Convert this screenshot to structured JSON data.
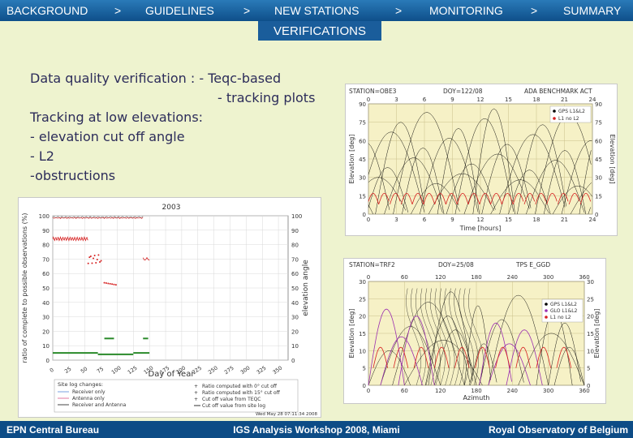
{
  "nav": {
    "items": [
      "BACKGROUND",
      "GUIDELINES",
      "NEW STATIONS",
      "MONITORING",
      "SUMMARY"
    ],
    "separator": ">",
    "active_sub": "VERIFICATIONS"
  },
  "content": {
    "line1": "Data quality verification :  -  Teqc-based",
    "line2": "-  tracking plots",
    "line3": "Tracking at low elevations:",
    "line4": "- elevation cut off angle",
    "line5": "- L2",
    "line6": "-obstructions"
  },
  "plot_left": {
    "title": "2003",
    "ylabel_left": "ratio of complete to possible observations (%)",
    "ylabel_right": "elevation angle",
    "xlabel": "Day of Year",
    "y_ticks": [
      "0",
      "10",
      "20",
      "30",
      "40",
      "50",
      "60",
      "70",
      "80",
      "90",
      "100"
    ],
    "x_ticks": [
      "0",
      "25",
      "50",
      "75",
      "100",
      "125",
      "150",
      "175",
      "200",
      "225",
      "250",
      "275",
      "300",
      "325",
      "350"
    ],
    "legend_title": "Site log changes:",
    "legend_left": [
      "Receiver only",
      "Antenna only",
      "Receiver and Antenna"
    ],
    "legend_right": [
      "Ratio computed with 0° cut off",
      "Ratio computed with 15° cut off",
      "Cut off value from TEQC",
      "Cut off value from site log"
    ],
    "timestamp": "Wed May 28 07:11:34 2008"
  },
  "plot_top_right": {
    "header": [
      "STATION=OBE3",
      "DOY=122/08",
      "ADA BENCHMARK ACT"
    ],
    "legend": [
      "GPS L1&L2",
      "L1 no L2"
    ],
    "ylabel_left": "Elevation [deg]",
    "ylabel_right": "Elevation [deg]",
    "xlabel": "Time [hours]",
    "x_ticks": [
      "0",
      "3",
      "6",
      "9",
      "12",
      "15",
      "18",
      "21",
      "24"
    ],
    "y_ticks": [
      "0",
      "15",
      "30",
      "45",
      "60",
      "75",
      "90"
    ]
  },
  "plot_bottom_right": {
    "header": [
      "STATION=TRF2",
      "DOY=25/08",
      "TPS E_GGD"
    ],
    "legend": [
      "GPS L1&L2",
      "GLO L1&L2",
      "L1 no L2"
    ],
    "ylabel_left": "Elevation [deg]",
    "ylabel_right": "Elevation [deg]",
    "xlabel": "Azimuth",
    "x_ticks": [
      "0",
      "60",
      "120",
      "180",
      "240",
      "300",
      "360"
    ],
    "y_ticks": [
      "0",
      "5",
      "10",
      "15",
      "20",
      "25",
      "30"
    ]
  },
  "footer": {
    "left": "EPN Central Bureau",
    "center": "IGS Analysis Workshop 2008, Miami",
    "right": "Royal Observatory of Belgium"
  },
  "colors": {
    "nav_bg": "#1a6aa8",
    "page_bg": "#eef3cf",
    "text": "#2c2c5a",
    "plot_bg": "#f6f1c6",
    "gps": "#000000",
    "glo": "#9b2fb0",
    "l1_no_l2": "#d62020"
  }
}
